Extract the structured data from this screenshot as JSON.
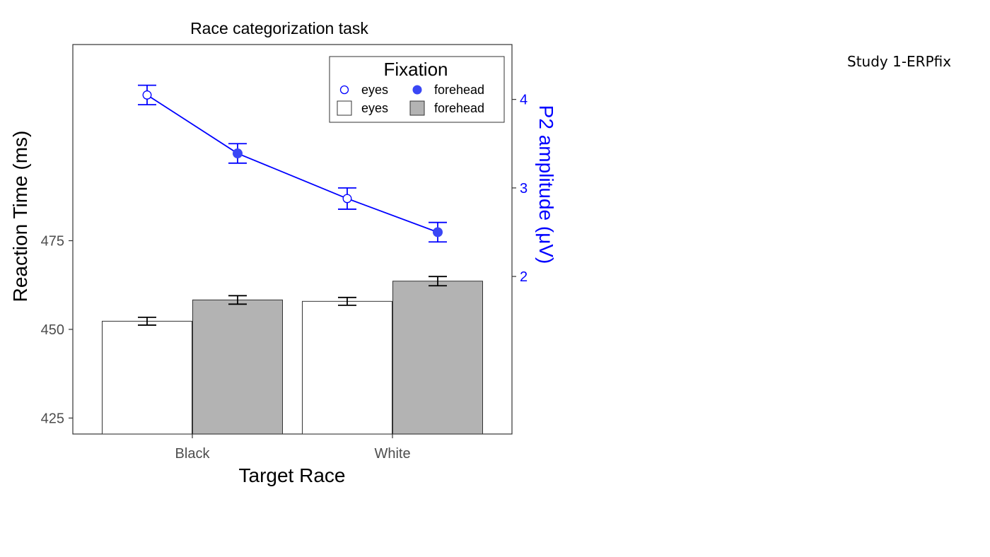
{
  "corner_note": "Study 1-ERPfix",
  "chart_data": {
    "type": "bar",
    "title": "Race categorization task",
    "xlabel": "Target Race",
    "ylabel": "Reaction Time (ms)",
    "y2label": "P2 amplitude (μV)",
    "categories": [
      "Black",
      "White"
    ],
    "ylim": [
      420.5,
      530.3
    ],
    "yticks": [
      425,
      450,
      475
    ],
    "y2lim": [
      0.22,
      4.62
    ],
    "y2ticks": [
      2,
      3,
      4
    ],
    "legend": {
      "title": "Fixation",
      "position": "top-right",
      "point_entries": [
        "eyes",
        "forehead"
      ],
      "bar_entries": [
        "eyes",
        "forehead"
      ]
    },
    "bar_series": [
      {
        "name": "eyes",
        "fill": "#ffffff",
        "values": [
          452.3,
          457.9
        ],
        "err": [
          1.1,
          1.1
        ]
      },
      {
        "name": "forehead",
        "fill": "#b3b3b3",
        "values": [
          458.3,
          463.6
        ],
        "err": [
          1.2,
          1.3
        ]
      }
    ],
    "line_series": {
      "axis": "right",
      "color": "#0000ff",
      "points": [
        {
          "category": "Black",
          "fixation": "eyes",
          "value": 4.05,
          "err": 0.11,
          "filled": false
        },
        {
          "category": "Black",
          "fixation": "forehead",
          "value": 3.39,
          "err": 0.11,
          "filled": true
        },
        {
          "category": "White",
          "fixation": "eyes",
          "value": 2.88,
          "err": 0.12,
          "filled": false
        },
        {
          "category": "White",
          "fixation": "forehead",
          "value": 2.5,
          "err": 0.11,
          "filled": true
        }
      ]
    }
  }
}
